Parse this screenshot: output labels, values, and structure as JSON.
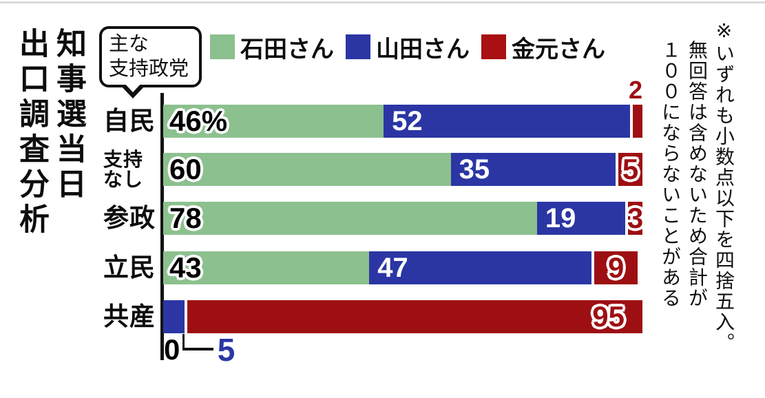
{
  "page": {
    "background": "#ffffff",
    "top_rule_color": "#d9d9d9"
  },
  "title": {
    "line1": "知事選当日",
    "line2": "出口調査分析"
  },
  "bubble": {
    "line1": "主な",
    "line2": "支持政党"
  },
  "legend": {
    "items": [
      {
        "label": "石田さん",
        "color": "#8CC08E"
      },
      {
        "label": "山田さん",
        "color": "#2B36A4"
      },
      {
        "label": "金元さん",
        "color": "#A81013"
      }
    ]
  },
  "note": {
    "line1": "※いずれも小数点以下を四捨五入。",
    "line2": "無回答は含めないため合計が",
    "line3": "１００にならないことがある"
  },
  "chart_data": {
    "type": "bar",
    "orientation": "horizontal-stacked",
    "unit": "%",
    "xlim": [
      0,
      100
    ],
    "grid": false,
    "legend_position": "top",
    "categories": [
      "自民",
      "支持なし",
      "参政",
      "立民",
      "共産"
    ],
    "series": [
      {
        "name": "石田さん",
        "color": "#8CC08E",
        "values": [
          46,
          60,
          78,
          43,
          0
        ]
      },
      {
        "name": "山田さん",
        "color": "#2B36A4",
        "values": [
          52,
          35,
          19,
          47,
          5
        ]
      },
      {
        "name": "金元さん",
        "color": "#9D0F13",
        "values": [
          2,
          5,
          3,
          9,
          95
        ]
      }
    ],
    "rows": [
      {
        "cat_lines": [
          "自民"
        ],
        "green": 46,
        "blue": 52,
        "red": 2,
        "green_label": "46%",
        "blue_label": "52",
        "red_label": "2",
        "red_label_placement": "above"
      },
      {
        "cat_lines": [
          "支持",
          "なし"
        ],
        "green": 60,
        "blue": 35,
        "red": 5,
        "green_label": "60",
        "blue_label": "35",
        "red_label": "5",
        "red_label_placement": "on"
      },
      {
        "cat_lines": [
          "参政"
        ],
        "green": 78,
        "blue": 19,
        "red": 3,
        "green_label": "78",
        "blue_label": "19",
        "red_label": "3",
        "red_label_placement": "on"
      },
      {
        "cat_lines": [
          "立民"
        ],
        "green": 43,
        "blue": 47,
        "red": 9,
        "green_label": "43",
        "blue_label": "47",
        "red_label": "9",
        "red_label_placement": "on"
      },
      {
        "cat_lines": [
          "共産"
        ],
        "green": 0,
        "blue": 5,
        "red": 95,
        "green_label": null,
        "blue_label": null,
        "red_label": "95",
        "red_label_placement": "inside-right",
        "below_labels": {
          "green_value": "0",
          "blue_value": "5"
        }
      }
    ]
  }
}
